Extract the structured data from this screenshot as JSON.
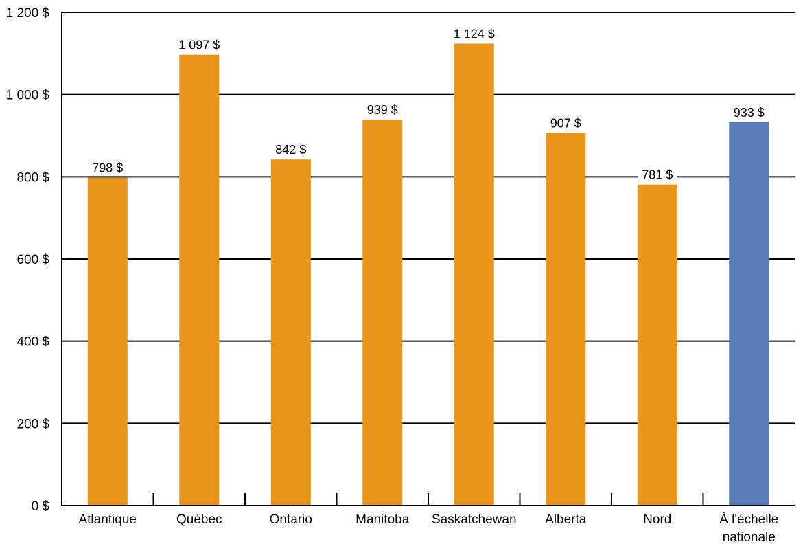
{
  "chart_data": {
    "type": "bar",
    "title": "",
    "xlabel": "",
    "ylabel": "",
    "categories": [
      "Atlantique",
      "Québec",
      "Ontario",
      "Manitoba",
      "Saskatchewan",
      "Alberta",
      "Nord",
      "À l'échelle nationale"
    ],
    "values": [
      798,
      1097,
      842,
      939,
      1124,
      907,
      781,
      933
    ],
    "data_labels": [
      "798 $",
      "1 097 $",
      "842 $",
      "939 $",
      "1 124 $",
      "907 $",
      "781 $",
      "933 $"
    ],
    "y_ticks": [
      0,
      200,
      400,
      600,
      800,
      1000,
      1200
    ],
    "y_tick_labels": [
      "0 $",
      "200 $",
      "400 $",
      "600 $",
      "800 $",
      "1 000 $",
      "1 200 $"
    ],
    "ylim": [
      0,
      1200
    ],
    "grid": true,
    "legend": "none",
    "colors": {
      "regional": "#E8951C",
      "national": "#587CB8"
    },
    "highlight_category": "À l'échelle nationale"
  }
}
